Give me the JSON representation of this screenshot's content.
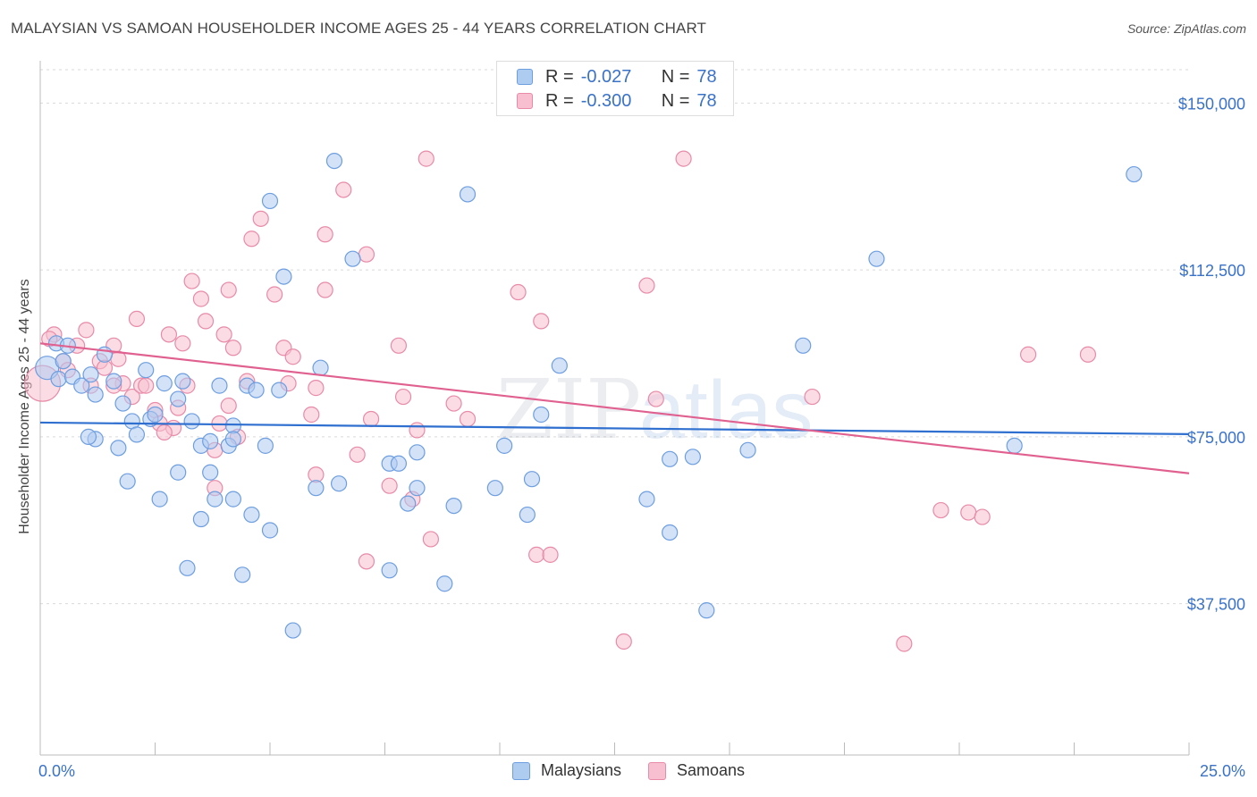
{
  "header": {
    "title": "MALAYSIAN VS SAMOAN HOUSEHOLDER INCOME AGES 25 - 44 YEARS CORRELATION CHART",
    "source": "Source: ZipAtlas.com"
  },
  "legend": {
    "rows": [
      {
        "r_label": "R =",
        "r_value": "-0.027",
        "n_label": "N =",
        "n_value": "78"
      },
      {
        "r_label": "R =",
        "r_value": "-0.300",
        "n_label": "N =",
        "n_value": "78"
      }
    ]
  },
  "bottom_legend": {
    "malaysians": "Malaysians",
    "samoans": "Samoans"
  },
  "colors": {
    "malaysian_fill": "#aecbf0",
    "malaysian_stroke": "#6d9ee0",
    "malaysian_line": "#2f6fcf",
    "samoan_fill": "#f7bfd0",
    "samoan_stroke": "#e88aa8",
    "samoan_line": "#e0608f",
    "axis_text": "#3a72c8"
  },
  "chart_data": {
    "type": "scatter",
    "ylabel": "Householder Income Ages 25 - 44 years",
    "xlabel": "",
    "x_tick_labels": [
      "0.0%",
      "25.0%"
    ],
    "y_tick_labels": [
      "$150,000",
      "$112,500",
      "$75,000",
      "$37,500"
    ],
    "y_ticks": [
      150000,
      112500,
      75000,
      37500
    ],
    "xlim": [
      0,
      25
    ],
    "ylim": [
      3500,
      157500
    ],
    "grid": true,
    "legend_position": "top-center",
    "series": [
      {
        "name": "Malaysians",
        "trend": {
          "x": [
            0,
            25
          ],
          "y": [
            78200,
            75600
          ]
        },
        "points": [
          [
            0.15,
            90500
          ],
          [
            0.35,
            96000
          ],
          [
            0.5,
            92000
          ],
          [
            0.4,
            88000
          ],
          [
            0.6,
            95500
          ],
          [
            0.7,
            88500
          ],
          [
            0.9,
            86500
          ],
          [
            1.1,
            89000
          ],
          [
            1.4,
            93500
          ],
          [
            1.2,
            84500
          ],
          [
            1.6,
            87500
          ],
          [
            1.8,
            82500
          ],
          [
            2.0,
            78500
          ],
          [
            2.1,
            75500
          ],
          [
            2.3,
            90000
          ],
          [
            2.4,
            79000
          ],
          [
            2.7,
            87000
          ],
          [
            3.0,
            83500
          ],
          [
            3.1,
            87500
          ],
          [
            3.3,
            78500
          ],
          [
            3.5,
            73000
          ],
          [
            3.9,
            86500
          ],
          [
            4.1,
            73000
          ],
          [
            4.2,
            77500
          ],
          [
            4.5,
            86500
          ],
          [
            4.7,
            85500
          ],
          [
            4.9,
            73000
          ],
          [
            5.0,
            128000
          ],
          [
            5.2,
            85500
          ],
          [
            5.3,
            111000
          ],
          [
            6.1,
            90500
          ],
          [
            6.4,
            137000
          ],
          [
            6.8,
            115000
          ],
          [
            7.6,
            69000
          ],
          [
            7.8,
            69000
          ],
          [
            8.2,
            71500
          ],
          [
            9.3,
            129500
          ],
          [
            10.1,
            73000
          ],
          [
            10.9,
            80000
          ],
          [
            11.3,
            91000
          ],
          [
            13.7,
            70000
          ],
          [
            14.2,
            70500
          ],
          [
            15.4,
            72000
          ],
          [
            16.6,
            95500
          ],
          [
            18.2,
            115000
          ],
          [
            21.2,
            73000
          ],
          [
            23.8,
            134000
          ],
          [
            1.2,
            74500
          ],
          [
            1.7,
            72500
          ],
          [
            1.9,
            65000
          ],
          [
            2.6,
            61000
          ],
          [
            3.0,
            67000
          ],
          [
            3.7,
            67000
          ],
          [
            3.8,
            61000
          ],
          [
            4.2,
            61000
          ],
          [
            3.5,
            56500
          ],
          [
            4.6,
            57500
          ],
          [
            5.0,
            54000
          ],
          [
            6.0,
            63500
          ],
          [
            6.5,
            64500
          ],
          [
            8.2,
            63500
          ],
          [
            8.0,
            60000
          ],
          [
            9.0,
            59500
          ],
          [
            9.9,
            63500
          ],
          [
            10.6,
            57500
          ],
          [
            10.7,
            65500
          ],
          [
            13.2,
            61000
          ],
          [
            13.7,
            53500
          ],
          [
            3.2,
            45500
          ],
          [
            4.4,
            44000
          ],
          [
            7.6,
            45000
          ],
          [
            8.8,
            42000
          ],
          [
            5.5,
            31500
          ],
          [
            14.5,
            36000
          ],
          [
            1.05,
            75000
          ],
          [
            2.5,
            80000
          ],
          [
            3.7,
            74000
          ],
          [
            4.2,
            74500
          ]
        ]
      },
      {
        "name": "Samoans",
        "trend": {
          "x": [
            0,
            25
          ],
          "y": [
            96000,
            66800
          ]
        },
        "points": [
          [
            0.05,
            87000
          ],
          [
            0.3,
            98000
          ],
          [
            0.5,
            92000
          ],
          [
            0.6,
            90000
          ],
          [
            0.8,
            95500
          ],
          [
            1.0,
            99000
          ],
          [
            1.3,
            92000
          ],
          [
            1.4,
            90500
          ],
          [
            1.6,
            95500
          ],
          [
            1.8,
            87000
          ],
          [
            2.0,
            84000
          ],
          [
            2.1,
            101500
          ],
          [
            2.2,
            86500
          ],
          [
            2.3,
            86500
          ],
          [
            2.5,
            81000
          ],
          [
            2.6,
            78000
          ],
          [
            2.8,
            98000
          ],
          [
            2.9,
            77000
          ],
          [
            3.0,
            81500
          ],
          [
            3.1,
            96000
          ],
          [
            3.2,
            86500
          ],
          [
            3.3,
            110000
          ],
          [
            3.5,
            106000
          ],
          [
            3.6,
            101000
          ],
          [
            3.8,
            72000
          ],
          [
            3.9,
            78000
          ],
          [
            4.0,
            98000
          ],
          [
            4.1,
            108000
          ],
          [
            4.2,
            95000
          ],
          [
            4.5,
            87500
          ],
          [
            4.8,
            124000
          ],
          [
            4.6,
            119500
          ],
          [
            5.1,
            107000
          ],
          [
            5.3,
            95000
          ],
          [
            5.5,
            93000
          ],
          [
            5.4,
            87000
          ],
          [
            6.0,
            66500
          ],
          [
            6.2,
            108000
          ],
          [
            6.0,
            86000
          ],
          [
            6.2,
            120500
          ],
          [
            6.6,
            130500
          ],
          [
            7.1,
            116000
          ],
          [
            7.2,
            79000
          ],
          [
            7.6,
            64000
          ],
          [
            7.8,
            95500
          ],
          [
            7.9,
            84000
          ],
          [
            8.1,
            61000
          ],
          [
            8.4,
            137500
          ],
          [
            8.5,
            52000
          ],
          [
            9.3,
            79000
          ],
          [
            10.4,
            107500
          ],
          [
            10.9,
            101000
          ],
          [
            13.2,
            109000
          ],
          [
            13.4,
            83500
          ],
          [
            14.0,
            137500
          ],
          [
            16.8,
            84000
          ],
          [
            19.6,
            58500
          ],
          [
            20.2,
            58000
          ],
          [
            20.5,
            57000
          ],
          [
            21.5,
            93500
          ],
          [
            22.8,
            93500
          ],
          [
            7.1,
            47000
          ],
          [
            10.8,
            48500
          ],
          [
            11.1,
            48500
          ],
          [
            12.7,
            29000
          ],
          [
            18.8,
            28500
          ],
          [
            3.8,
            63500
          ],
          [
            0.2,
            97000
          ],
          [
            1.1,
            86500
          ],
          [
            1.6,
            86500
          ],
          [
            2.7,
            76000
          ],
          [
            4.3,
            75000
          ],
          [
            5.9,
            80000
          ],
          [
            8.2,
            76500
          ],
          [
            4.1,
            82000
          ],
          [
            6.9,
            71000
          ],
          [
            9.0,
            82500
          ],
          [
            1.7,
            92500
          ]
        ]
      }
    ]
  }
}
